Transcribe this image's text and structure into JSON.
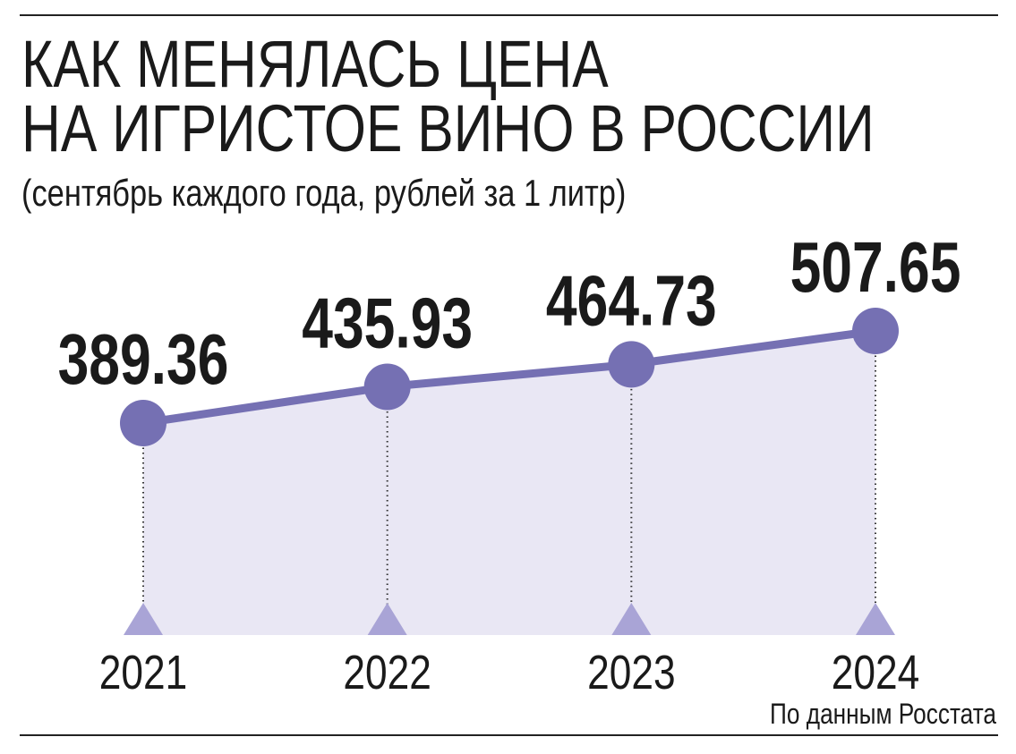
{
  "chart_data": {
    "type": "line",
    "title": [
      "КАК МЕНЯЛАСЬ ЦЕНА",
      "НА ИГРИСТОЕ ВИНО В РОССИИ"
    ],
    "subtitle": "(сентябрь каждого года, рублей за 1 литр)",
    "categories": [
      "2021",
      "2022",
      "2023",
      "2024"
    ],
    "values": [
      389.36,
      435.93,
      464.73,
      507.65
    ],
    "color": "#7570b3",
    "area_color": "#e9e7f4",
    "marker_color": "#a9a4d6",
    "source": "По данным Росстата"
  }
}
